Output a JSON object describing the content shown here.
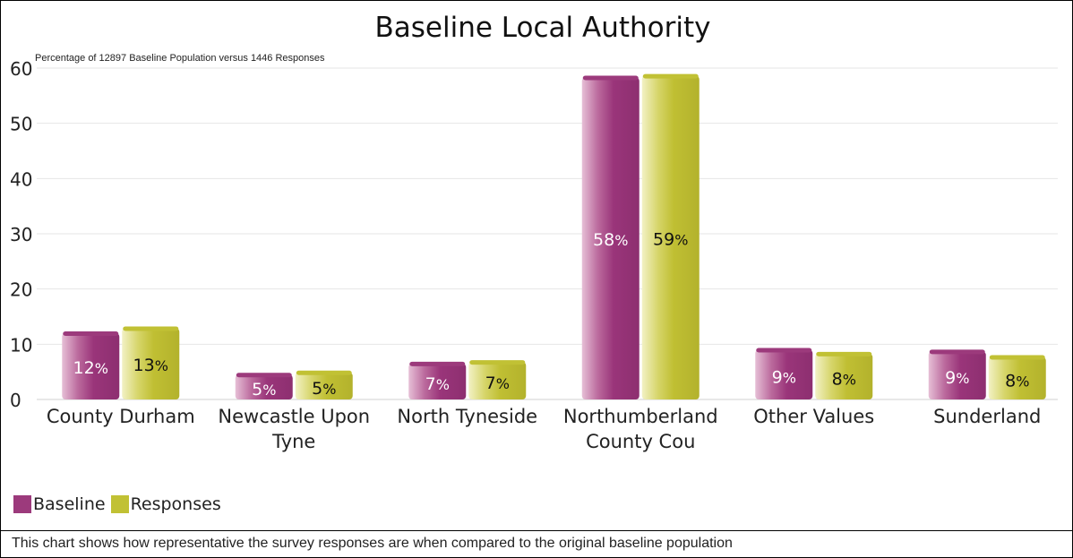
{
  "chart_data": {
    "type": "bar",
    "title": "Baseline Local Authority",
    "subtitle": "Percentage of 12897 Baseline Population versus 1446 Responses",
    "categories": [
      [
        "County Durham"
      ],
      [
        "Newcastle Upon",
        "Tyne"
      ],
      [
        "North Tyneside"
      ],
      [
        "Northumberland",
        "County Cou"
      ],
      [
        "Other Values"
      ],
      [
        "Sunderland"
      ]
    ],
    "series": [
      {
        "name": "Baseline",
        "values": [
          12,
          4.5,
          6.5,
          58.3,
          9,
          8.7
        ],
        "labels": [
          "12",
          "5",
          "7",
          "58",
          "9",
          "9"
        ],
        "color": "#9c3a7c",
        "label_color": "#ffffff"
      },
      {
        "name": "Responses",
        "values": [
          12.9,
          4.9,
          6.8,
          58.6,
          8.3,
          7.7
        ],
        "labels": [
          "13",
          "5",
          "7",
          "59",
          "8",
          "8"
        ],
        "color": "#c1c134",
        "label_color": "#111111"
      }
    ],
    "percent_suffix": "%",
    "yticks": [
      0,
      10,
      20,
      30,
      40,
      50,
      60
    ],
    "ylim": [
      0,
      60
    ],
    "grid": true,
    "legend_position": "bottom-left"
  },
  "caption": "This chart shows how representative the survey responses are when compared to the original baseline population"
}
